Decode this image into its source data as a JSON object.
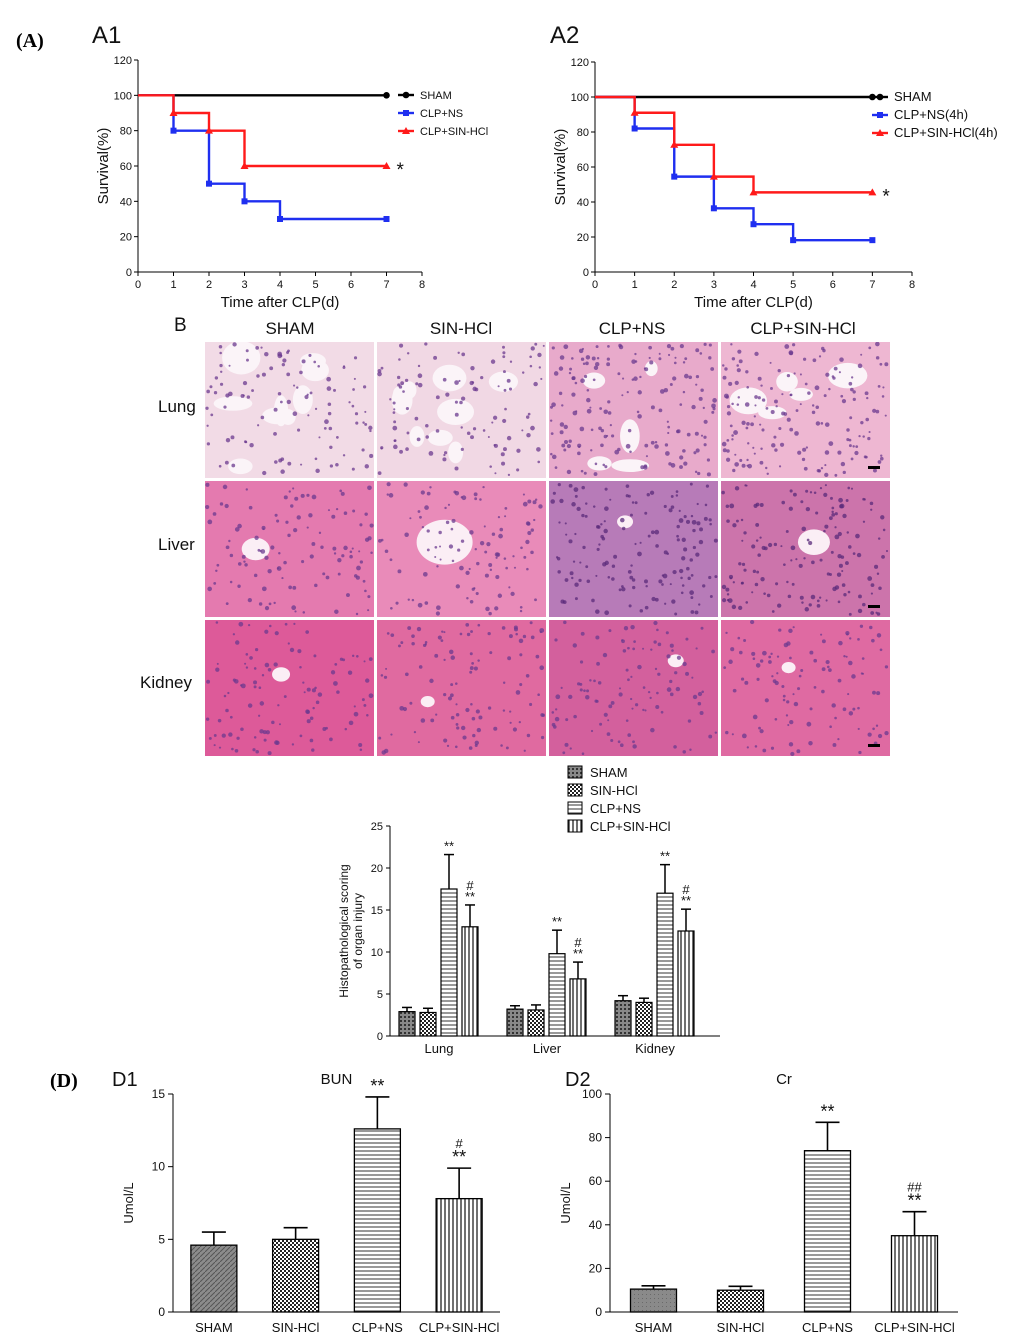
{
  "panel_letters": {
    "A": "(A)",
    "D": "(D)"
  },
  "chart_data": [
    {
      "id": "A1",
      "panel": "A1",
      "type": "line",
      "step": true,
      "xlabel": "Time after CLP(d)",
      "ylabel": "Survival(%)",
      "xlim": [
        0,
        8
      ],
      "ylim": [
        0,
        120
      ],
      "xticks": [
        "0",
        "1",
        "2",
        "3",
        "4",
        "5",
        "6",
        "7",
        "8"
      ],
      "yticks": [
        "0",
        "20",
        "40",
        "60",
        "80",
        "100",
        "120"
      ],
      "legend_position": "top-right",
      "series": [
        {
          "name": "SHAM",
          "color": "#000000",
          "marker": "circle",
          "x": [
            0,
            7
          ],
          "y": [
            100,
            100
          ]
        },
        {
          "name": "CLP+NS",
          "color": "#1f2ff0",
          "marker": "square",
          "x": [
            0,
            1,
            2,
            3,
            4,
            7
          ],
          "y": [
            100,
            80,
            50,
            40,
            30,
            30
          ]
        },
        {
          "name": "CLP+SIN-HCl",
          "color": "#ff1a1a",
          "marker": "triangle",
          "x": [
            0,
            1,
            2,
            3,
            7
          ],
          "y": [
            100,
            90,
            80,
            60,
            60
          ]
        }
      ],
      "annotation": "*"
    },
    {
      "id": "A2",
      "panel": "A2",
      "type": "line",
      "step": true,
      "xlabel": "Time after CLP(d)",
      "ylabel": "Survival(%)",
      "xlim": [
        0,
        8
      ],
      "ylim": [
        0,
        120
      ],
      "xticks": [
        "0",
        "1",
        "2",
        "3",
        "4",
        "5",
        "6",
        "7",
        "8"
      ],
      "yticks": [
        "0",
        "20",
        "40",
        "60",
        "80",
        "100",
        "120"
      ],
      "legend_position": "top-right",
      "series": [
        {
          "name": "SHAM",
          "color": "#000000",
          "marker": "circle",
          "x": [
            0,
            7
          ],
          "y": [
            100,
            100
          ]
        },
        {
          "name": "CLP+NS(4h)",
          "color": "#1f2ff0",
          "marker": "square",
          "x": [
            0,
            1,
            2,
            3,
            4,
            5,
            7
          ],
          "y": [
            100,
            82,
            54.5,
            36.4,
            27.3,
            18.2,
            18.2
          ]
        },
        {
          "name": "CLP+SIN-HCl(4h)",
          "color": "#ff1a1a",
          "marker": "triangle",
          "x": [
            0,
            1,
            2,
            3,
            4,
            7
          ],
          "y": [
            100,
            91,
            72.7,
            54.5,
            45.5,
            45.5
          ]
        }
      ],
      "annotation": "*"
    },
    {
      "id": "C",
      "panel": "C",
      "type": "bar",
      "ylabel": "Histopathological scoring\nof organ injury",
      "ylim": [
        0,
        25
      ],
      "yticks": [
        "0",
        "5",
        "10",
        "15",
        "20",
        "25"
      ],
      "categories": [
        "Lung",
        "Liver",
        "Kidney"
      ],
      "legend_position": "top",
      "series": [
        {
          "name": "SHAM",
          "pattern": "dots",
          "values": [
            2.9,
            3.2,
            4.2
          ],
          "errors": [
            0.5,
            0.4,
            0.6
          ],
          "labels": [
            "",
            "",
            ""
          ]
        },
        {
          "name": "SIN-HCl",
          "pattern": "checker",
          "values": [
            2.8,
            3.1,
            4.0
          ],
          "errors": [
            0.5,
            0.6,
            0.5
          ],
          "labels": [
            "",
            "",
            ""
          ]
        },
        {
          "name": "CLP+NS",
          "pattern": "hlines",
          "values": [
            17.5,
            9.8,
            17.0
          ],
          "errors": [
            4.1,
            2.8,
            3.4
          ],
          "labels": [
            "**",
            "**",
            "**"
          ]
        },
        {
          "name": "CLP+SIN-HCl",
          "pattern": "vlines",
          "values": [
            13.0,
            6.8,
            12.5
          ],
          "errors": [
            2.6,
            2.0,
            2.6
          ],
          "labels": [
            "#\n**",
            "#\n**",
            "#\n**"
          ]
        }
      ]
    },
    {
      "id": "D1",
      "panel": "D1",
      "type": "bar",
      "title": "BUN",
      "ylabel": "Umol/L",
      "ylim": [
        0,
        15
      ],
      "yticks": [
        "0",
        "5",
        "10",
        "15"
      ],
      "categories": [
        "SHAM",
        "SIN-HCl",
        "CLP+NS",
        "CLP+SIN-HCl"
      ],
      "patterns": [
        "diag",
        "checker",
        "hlines",
        "vlines"
      ],
      "values": [
        4.6,
        5.0,
        12.6,
        7.8
      ],
      "errors": [
        0.9,
        0.8,
        2.2,
        2.1
      ],
      "labels": [
        "",
        "",
        "**",
        "#\n**"
      ]
    },
    {
      "id": "D2",
      "panel": "D2",
      "type": "bar",
      "title": "Cr",
      "ylabel": "Umol/L",
      "ylim": [
        0,
        100
      ],
      "yticks": [
        "0",
        "20",
        "40",
        "60",
        "80",
        "100"
      ],
      "categories": [
        "SHAM",
        "SIN-HCl",
        "CLP+NS",
        "CLP+SIN-HCl"
      ],
      "patterns": [
        "solidgray",
        "checker",
        "hlines",
        "vlines"
      ],
      "values": [
        10.5,
        10.0,
        74.0,
        35.0
      ],
      "errors": [
        1.5,
        1.8,
        13.0,
        11.0
      ],
      "labels": [
        "",
        "",
        "**",
        "##\n**"
      ]
    }
  ],
  "histology": {
    "panel": "B",
    "columns": [
      "SHAM",
      "SIN-HCl",
      "CLP+NS",
      "CLP+SIN-HCl"
    ],
    "rows": [
      "Lung",
      "Liver",
      "Kidney"
    ]
  }
}
